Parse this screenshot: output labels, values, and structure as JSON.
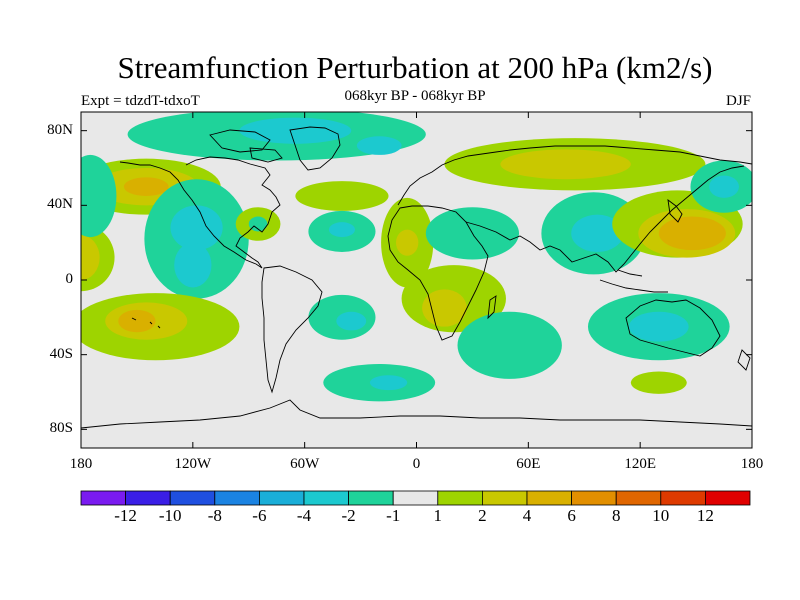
{
  "title": "Streamfunction Perturbation at 200 hPa (km2/s)",
  "subtitle": {
    "left": "Expt = tdzdT-tdxoT",
    "center": "068kyr BP - 068kyr BP",
    "right": "DJF"
  },
  "map": {
    "lon_range": [
      -180,
      180
    ],
    "lat_range": [
      -90,
      90
    ],
    "background": "#e8e8e8",
    "lat_ticks": [
      {
        "lat": 80,
        "label": "80N"
      },
      {
        "lat": 40,
        "label": "40N"
      },
      {
        "lat": 0,
        "label": "0"
      },
      {
        "lat": -40,
        "label": "40S"
      },
      {
        "lat": -80,
        "label": "80S"
      }
    ],
    "lon_ticks": [
      {
        "lon": -180,
        "label": "180"
      },
      {
        "lon": -120,
        "label": "120W"
      },
      {
        "lon": -60,
        "label": "60W"
      },
      {
        "lon": 0,
        "label": "0"
      },
      {
        "lon": 60,
        "label": "60E"
      },
      {
        "lon": 120,
        "label": "120E"
      },
      {
        "lon": 180,
        "label": "180"
      }
    ],
    "anomalies": [
      {
        "lon": -180,
        "lat": 12,
        "rx": 18,
        "ry": 18,
        "level": 1
      },
      {
        "lon": -180,
        "lat": 12,
        "rx": 10,
        "ry": 12,
        "level": 2
      },
      {
        "lon": -145,
        "lat": 50,
        "rx": 40,
        "ry": 15,
        "level": 1
      },
      {
        "lon": -145,
        "lat": 50,
        "rx": 28,
        "ry": 10,
        "level": 2
      },
      {
        "lon": -145,
        "lat": 50,
        "rx": 12,
        "ry": 5,
        "level": 4
      },
      {
        "lon": -175,
        "lat": 45,
        "rx": 14,
        "ry": 22,
        "level": -1
      },
      {
        "lon": -118,
        "lat": 22,
        "rx": 28,
        "ry": 32,
        "level": -1
      },
      {
        "lon": -118,
        "lat": 28,
        "rx": 14,
        "ry": 12,
        "level": -2
      },
      {
        "lon": -120,
        "lat": 8,
        "rx": 10,
        "ry": 12,
        "level": -2
      },
      {
        "lon": -75,
        "lat": 78,
        "rx": 80,
        "ry": 14,
        "level": -1
      },
      {
        "lon": -65,
        "lat": 80,
        "rx": 30,
        "ry": 7,
        "level": -2
      },
      {
        "lon": -20,
        "lat": 72,
        "rx": 12,
        "ry": 5,
        "level": -2
      },
      {
        "lon": -85,
        "lat": 30,
        "rx": 12,
        "ry": 9,
        "level": 1
      },
      {
        "lon": -85,
        "lat": 30,
        "rx": 5,
        "ry": 4,
        "level": -1
      },
      {
        "lon": -40,
        "lat": 45,
        "rx": 25,
        "ry": 8,
        "level": 1
      },
      {
        "lon": -40,
        "lat": 26,
        "rx": 18,
        "ry": 11,
        "level": -1
      },
      {
        "lon": -40,
        "lat": 27,
        "rx": 7,
        "ry": 4,
        "level": -2
      },
      {
        "lon": -5,
        "lat": 20,
        "rx": 14,
        "ry": 24,
        "level": 1
      },
      {
        "lon": -5,
        "lat": 20,
        "rx": 6,
        "ry": 7,
        "level": 2
      },
      {
        "lon": 30,
        "lat": 25,
        "rx": 25,
        "ry": 14,
        "level": -1
      },
      {
        "lon": 20,
        "lat": -10,
        "rx": 28,
        "ry": 18,
        "level": 1
      },
      {
        "lon": 15,
        "lat": -15,
        "rx": 12,
        "ry": 10,
        "level": 2
      },
      {
        "lon": 50,
        "lat": -35,
        "rx": 28,
        "ry": 18,
        "level": -1
      },
      {
        "lon": 85,
        "lat": 62,
        "rx": 70,
        "ry": 14,
        "level": 1
      },
      {
        "lon": 80,
        "lat": 62,
        "rx": 35,
        "ry": 8,
        "level": 2
      },
      {
        "lon": 95,
        "lat": 25,
        "rx": 28,
        "ry": 22,
        "level": -1
      },
      {
        "lon": 97,
        "lat": 25,
        "rx": 14,
        "ry": 10,
        "level": -2
      },
      {
        "lon": 140,
        "lat": 30,
        "rx": 35,
        "ry": 18,
        "level": 1
      },
      {
        "lon": 145,
        "lat": 25,
        "rx": 26,
        "ry": 13,
        "level": 2
      },
      {
        "lon": 148,
        "lat": 25,
        "rx": 18,
        "ry": 9,
        "level": 4
      },
      {
        "lon": 165,
        "lat": 50,
        "rx": 18,
        "ry": 14,
        "level": -1
      },
      {
        "lon": 165,
        "lat": 50,
        "rx": 8,
        "ry": 6,
        "level": -2
      },
      {
        "lon": 130,
        "lat": -25,
        "rx": 38,
        "ry": 18,
        "level": -1
      },
      {
        "lon": 130,
        "lat": -25,
        "rx": 16,
        "ry": 8,
        "level": -2
      },
      {
        "lon": -40,
        "lat": -20,
        "rx": 18,
        "ry": 12,
        "level": -1
      },
      {
        "lon": -35,
        "lat": -22,
        "rx": 8,
        "ry": 5,
        "level": -2
      },
      {
        "lon": -140,
        "lat": -25,
        "rx": 45,
        "ry": 18,
        "level": 1
      },
      {
        "lon": -145,
        "lat": -22,
        "rx": 22,
        "ry": 10,
        "level": 2
      },
      {
        "lon": -150,
        "lat": -22,
        "rx": 10,
        "ry": 6,
        "level": 4
      },
      {
        "lon": -20,
        "lat": -55,
        "rx": 30,
        "ry": 10,
        "level": -1
      },
      {
        "lon": -15,
        "lat": -55,
        "rx": 10,
        "ry": 4,
        "level": -2
      },
      {
        "lon": 130,
        "lat": -55,
        "rx": 15,
        "ry": 6,
        "level": 1
      }
    ]
  },
  "colorbar": {
    "colors": [
      "#7a1bf0",
      "#3a1ee6",
      "#1f4fe0",
      "#1b83e2",
      "#1aaed8",
      "#1cc9cf",
      "#1fd39a",
      "#e8e8e8",
      "#9ed400",
      "#c9c800",
      "#d9b000",
      "#e28f00",
      "#e06600",
      "#de3a00",
      "#e00000"
    ],
    "labels": [
      "-12",
      "-10",
      "-8",
      "-6",
      "-4",
      "-2",
      "-1",
      "1",
      "2",
      "4",
      "6",
      "8",
      "10",
      "12"
    ]
  }
}
